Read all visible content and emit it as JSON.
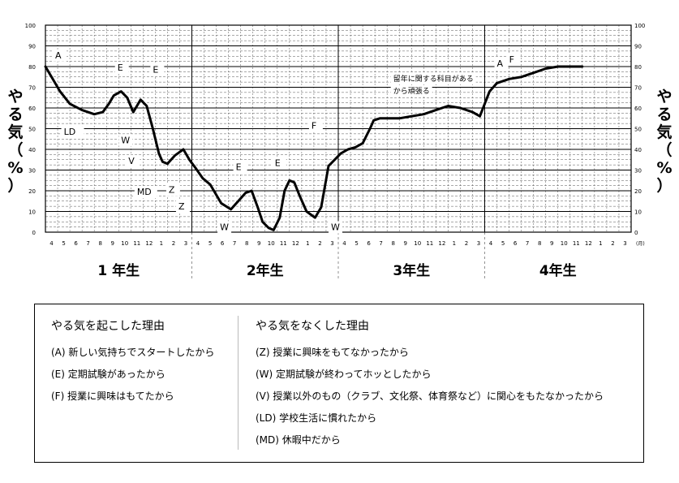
{
  "chart_data": {
    "type": "line",
    "title": "",
    "ylabel": "やる気（%）",
    "ylabel_chars": [
      "や",
      "る",
      "気",
      "（",
      "%",
      "）"
    ],
    "ylim": [
      0,
      100
    ],
    "yticks": [
      "0",
      "10",
      "20",
      "30",
      "40",
      "50",
      "60",
      "70",
      "80",
      "90",
      "100"
    ],
    "x_unit": "(月)",
    "month_labels": [
      "4",
      "5",
      "6",
      "7",
      "8",
      "9",
      "10",
      "11",
      "12",
      "1",
      "2",
      "3",
      "4",
      "5",
      "6",
      "7",
      "8",
      "9",
      "10",
      "11",
      "12",
      "1",
      "2",
      "3",
      "4",
      "5",
      "6",
      "7",
      "8",
      "9",
      "10",
      "11",
      "12",
      "1",
      "2",
      "3",
      "4",
      "5",
      "6",
      "7",
      "8",
      "9",
      "10",
      "11",
      "12",
      "1",
      "2",
      "3"
    ],
    "years": [
      "1 年生",
      "2年生",
      "3年生",
      "4年生"
    ],
    "grid": true,
    "series": [
      {
        "x": [
          0,
          0.6,
          1.2,
          2,
          3,
          4,
          4.7,
          5.2,
          5.6,
          6.2,
          6.7,
          7.2,
          7.8,
          8.3,
          8.8,
          9.3,
          9.6,
          10,
          10.6,
          11.3,
          11.8,
          12.3,
          12.9,
          13.5,
          14.4,
          15.2,
          15.8,
          16.4,
          16.9,
          17.4,
          17.8,
          18.3,
          18.7,
          19.2,
          19.6,
          20,
          20.4,
          20.8,
          21.4,
          22.1,
          22.6,
          23.2,
          23.7,
          24.2,
          24.8,
          25.4,
          26,
          26.6,
          26.9,
          27.4,
          28,
          29,
          30,
          31,
          32,
          33,
          34,
          35,
          35.6,
          36,
          36.4,
          37,
          38,
          39,
          40,
          41,
          42,
          43,
          44
        ],
        "values": [
          80,
          74,
          68,
          62,
          59,
          57,
          58,
          62,
          66,
          68,
          65,
          58,
          64,
          61,
          50,
          38,
          34,
          33,
          37,
          40,
          35,
          31,
          26,
          23,
          14,
          11,
          15,
          19,
          20,
          12,
          5,
          2,
          1,
          7,
          20,
          25,
          24,
          18,
          10,
          7,
          12,
          32,
          35,
          38,
          40,
          41,
          43,
          50,
          54,
          55,
          55,
          55,
          56,
          57,
          59,
          61,
          60,
          58,
          56,
          62,
          68,
          72,
          74,
          75,
          77,
          79,
          80,
          80,
          80
        ]
      }
    ],
    "annotations": [
      {
        "text": "A",
        "x": 0.8,
        "y": 84
      },
      {
        "text": "LD",
        "x": 1.5,
        "y": 47
      },
      {
        "text": "E",
        "x": 5.9,
        "y": 78
      },
      {
        "text": "E",
        "x": 8.8,
        "y": 77
      },
      {
        "text": "W",
        "x": 6.2,
        "y": 43
      },
      {
        "text": "V",
        "x": 6.8,
        "y": 33
      },
      {
        "text": "MD",
        "x": 7.5,
        "y": 18
      },
      {
        "text": "Z",
        "x": 10.1,
        "y": 19
      },
      {
        "text": "Z",
        "x": 10.9,
        "y": 11
      },
      {
        "text": "E",
        "x": 15.6,
        "y": 30
      },
      {
        "text": "E",
        "x": 18.8,
        "y": 32
      },
      {
        "text": "W",
        "x": 14.3,
        "y": 1
      },
      {
        "text": "W",
        "x": 23.4,
        "y": 1
      },
      {
        "text": "F",
        "x": 21.8,
        "y": 50
      },
      {
        "text": "留年に関する科目がある",
        "x": 28.5,
        "y": 73
      },
      {
        "text": "から頑張る",
        "x": 28.5,
        "y": 67
      },
      {
        "text": "A",
        "x": 37.0,
        "y": 80
      },
      {
        "text": "F",
        "x": 38.0,
        "y": 82
      }
    ]
  },
  "legend": {
    "left_title": "やる気を起こした理由",
    "left_items": [
      "(A)  新しい気持ちでスタートしたから",
      "(E)  定期試験があったから",
      "(F)  授業に興味はもてたから"
    ],
    "right_title": "やる気をなくした理由",
    "right_items": [
      "(Z)  授業に興味をもてなかったから",
      "(W)  定期試験が終わってホッとしたから",
      "(V)  授業以外のもの（クラブ、文化祭、体育祭など）に関心をもたなかったから",
      "(LD)  学校生活に慣れたから",
      "(MD)  休暇中だから"
    ]
  }
}
